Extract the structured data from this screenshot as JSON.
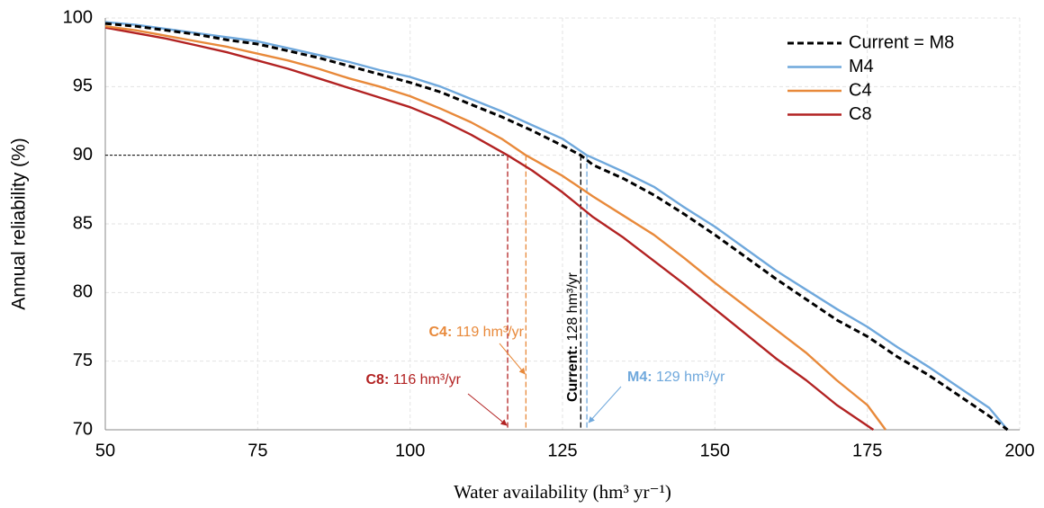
{
  "chart_data": {
    "type": "line",
    "xlabel": "Water availability (hm³ yr⁻¹)",
    "ylabel": "Annual reliability (%)",
    "xlim": [
      50,
      200
    ],
    "xticks": [
      50,
      75,
      100,
      125,
      150,
      175,
      200
    ],
    "ylim": [
      70,
      100
    ],
    "yticks": [
      70,
      75,
      80,
      85,
      90,
      95,
      100
    ],
    "grid": true,
    "legend": "upper right",
    "series": [
      {
        "name": "Current = M8",
        "color": "#000000",
        "dash": true,
        "x": [
          50,
          55,
          60,
          65,
          70,
          75,
          80,
          85,
          90,
          95,
          100,
          105,
          110,
          115,
          120,
          125,
          128,
          130,
          135,
          140,
          145,
          150,
          155,
          160,
          165,
          170,
          175,
          180,
          185,
          190,
          195,
          198
        ],
        "values": [
          99.6,
          99.4,
          99.1,
          98.8,
          98.4,
          98.1,
          97.6,
          97.1,
          96.5,
          95.9,
          95.3,
          94.6,
          93.7,
          92.8,
          91.8,
          90.7,
          90,
          89.3,
          88.3,
          87.1,
          85.7,
          84.2,
          82.6,
          81,
          79.5,
          78,
          76.8,
          75.3,
          74,
          72.5,
          71,
          70
        ]
      },
      {
        "name": "M4",
        "color": "#6fa8dc",
        "dash": false,
        "x": [
          50,
          55,
          60,
          65,
          70,
          75,
          80,
          85,
          90,
          95,
          100,
          105,
          110,
          115,
          120,
          125,
          129,
          130,
          135,
          140,
          145,
          150,
          155,
          160,
          165,
          170,
          175,
          180,
          185,
          190,
          195,
          198
        ],
        "values": [
          99.7,
          99.5,
          99.2,
          98.9,
          98.6,
          98.3,
          97.8,
          97.3,
          96.8,
          96.2,
          95.7,
          95.0,
          94.1,
          93.2,
          92.2,
          91.2,
          90,
          89.8,
          88.8,
          87.7,
          86.2,
          84.8,
          83.2,
          81.6,
          80.2,
          78.8,
          77.5,
          76.0,
          74.6,
          73.1,
          71.6,
          70
        ]
      },
      {
        "name": "C4",
        "color": "#e8893a",
        "dash": false,
        "x": [
          50,
          55,
          60,
          65,
          70,
          75,
          80,
          85,
          90,
          95,
          100,
          105,
          110,
          115,
          119,
          125,
          130,
          135,
          140,
          145,
          150,
          155,
          160,
          165,
          170,
          175,
          178
        ],
        "values": [
          99.4,
          99.1,
          98.7,
          98.3,
          97.9,
          97.4,
          96.9,
          96.3,
          95.6,
          95.0,
          94.3,
          93.4,
          92.4,
          91.2,
          90,
          88.5,
          87.0,
          85.6,
          84.2,
          82.5,
          80.7,
          79.0,
          77.3,
          75.6,
          73.6,
          71.8,
          70
        ]
      },
      {
        "name": "C8",
        "color": "#b22222",
        "dash": false,
        "x": [
          50,
          55,
          60,
          65,
          70,
          75,
          80,
          85,
          90,
          95,
          100,
          105,
          110,
          116,
          120,
          125,
          130,
          135,
          140,
          145,
          150,
          155,
          160,
          165,
          170,
          176
        ],
        "values": [
          99.3,
          98.9,
          98.5,
          98.0,
          97.5,
          96.9,
          96.3,
          95.6,
          94.9,
          94.2,
          93.5,
          92.6,
          91.5,
          90,
          88.9,
          87.3,
          85.5,
          84.0,
          82.3,
          80.6,
          78.8,
          77.0,
          75.2,
          73.6,
          71.8,
          70
        ]
      }
    ],
    "reference_line": {
      "y": 90
    },
    "annotations": [
      {
        "x": 116,
        "color": "#b22222",
        "bold": "C8:",
        "text": " 116 hm³/yr"
      },
      {
        "x": 119,
        "color": "#e8893a",
        "bold": "C4:",
        "text": " 119 hm³/yr"
      },
      {
        "x": 128,
        "color": "#000000",
        "bold": "Current:",
        "text": " 128 hm³/yr"
      },
      {
        "x": 129,
        "color": "#6fa8dc",
        "bold": "M4:",
        "text": " 129 hm³/yr"
      }
    ]
  }
}
